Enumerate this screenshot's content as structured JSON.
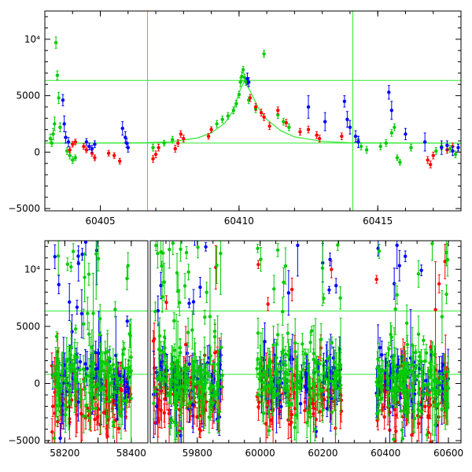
{
  "chart_data": [
    {
      "type": "scatter",
      "title": "",
      "xlabel": "",
      "ylabel": "",
      "xlim": [
        60403,
        60418
      ],
      "ylim": [
        -5200,
        12500
      ],
      "grid": false,
      "x_ticks": [
        60405,
        60410,
        60415
      ],
      "x_tick_labels": [
        "60405",
        "60410",
        "60415"
      ],
      "y_ticks": [
        -5000,
        0,
        5000,
        10000
      ],
      "y_tick_labels": [
        "−5000",
        "0",
        "5000",
        "10⁴"
      ],
      "vertical_lines": [
        60406.7,
        60414.1
      ],
      "horizontal_lines": [
        800,
        6350
      ],
      "line_color": "#2ee82e",
      "model_curve": {
        "color": "#2ee82e",
        "points": [
          [
            60403,
            790
          ],
          [
            60405,
            800
          ],
          [
            60406.5,
            830
          ],
          [
            60407.5,
            900
          ],
          [
            60408.5,
            1250
          ],
          [
            60409,
            1700
          ],
          [
            60409.5,
            2600
          ],
          [
            60409.8,
            3700
          ],
          [
            60410,
            5300
          ],
          [
            60410.2,
            6350
          ],
          [
            60410.4,
            5400
          ],
          [
            60410.7,
            3900
          ],
          [
            60411,
            2900
          ],
          [
            60411.5,
            1900
          ],
          [
            60412,
            1350
          ],
          [
            60413,
            950
          ],
          [
            60414,
            830
          ],
          [
            60418,
            790
          ]
        ]
      },
      "series": [
        {
          "color": "#00cc00",
          "points": [
            [
              60403.2,
              1200,
              400
            ],
            [
              60403.25,
              800,
              300
            ],
            [
              60403.3,
              1600,
              500
            ],
            [
              60403.35,
              2500,
              600
            ],
            [
              60403.4,
              9700,
              500
            ],
            [
              60403.45,
              6800,
              400
            ],
            [
              60403.5,
              4800,
              500
            ],
            [
              60403.55,
              2200,
              400
            ],
            [
              60403.8,
              100,
              300
            ],
            [
              60403.9,
              -300,
              300
            ],
            [
              60404,
              -700,
              300
            ],
            [
              60404.1,
              -500,
              250
            ],
            [
              60406.9,
              400,
              300
            ],
            [
              60407.3,
              800,
              250
            ],
            [
              60407.6,
              1100,
              300
            ],
            [
              60409.2,
              2500,
              300
            ],
            [
              60409.4,
              2900,
              300
            ],
            [
              60409.6,
              3200,
              300
            ],
            [
              60409.8,
              3700,
              300
            ],
            [
              60409.9,
              4300,
              300
            ],
            [
              60410,
              5100,
              300
            ],
            [
              60410.05,
              6200,
              400
            ],
            [
              60410.1,
              6700,
              400
            ],
            [
              60410.15,
              7300,
              300
            ],
            [
              60410.2,
              6600,
              300
            ],
            [
              60410.25,
              6200,
              300
            ],
            [
              60410.35,
              4600,
              300
            ],
            [
              60410.6,
              3800,
              300
            ],
            [
              60410.9,
              8700,
              300
            ],
            [
              60411.4,
              3300,
              300
            ],
            [
              60411.6,
              2700,
              300
            ],
            [
              60411.8,
              2200,
              300
            ],
            [
              60414.3,
              1100,
              300
            ],
            [
              60414.4,
              500,
              300
            ],
            [
              60414.6,
              200,
              300
            ],
            [
              60415.1,
              500,
              300
            ],
            [
              60415.3,
              800,
              300
            ],
            [
              60415.5,
              1700,
              300
            ],
            [
              60415.6,
              2200,
              300
            ],
            [
              60415.7,
              -500,
              250
            ],
            [
              60415.8,
              -900,
              250
            ],
            [
              60416.2,
              400,
              300
            ],
            [
              60417.1,
              100,
              300
            ],
            [
              60417.3,
              500,
              300
            ],
            [
              60417.6,
              300,
              300
            ],
            [
              60417.8,
              -200,
              300
            ]
          ]
        },
        {
          "color": "#ff0000",
          "points": [
            [
              60403.9,
              200,
              250
            ],
            [
              60404,
              700,
              250
            ],
            [
              60404.1,
              900,
              250
            ],
            [
              60404.4,
              500,
              250
            ],
            [
              60404.5,
              200,
              250
            ],
            [
              60404.7,
              -100,
              250
            ],
            [
              60404.8,
              -500,
              250
            ],
            [
              60405.3,
              -100,
              250
            ],
            [
              60405.5,
              -300,
              250
            ],
            [
              60405.7,
              -800,
              250
            ],
            [
              60406.9,
              -600,
              300
            ],
            [
              60407,
              -200,
              300
            ],
            [
              60407.1,
              400,
              300
            ],
            [
              60407.7,
              300,
              300
            ],
            [
              60407.8,
              800,
              300
            ],
            [
              60407.9,
              1600,
              300
            ],
            [
              60408,
              1200,
              300
            ],
            [
              60408.9,
              1400,
              250
            ],
            [
              60409,
              2000,
              250
            ],
            [
              60410.4,
              4800,
              300
            ],
            [
              60410.6,
              4000,
              300
            ],
            [
              60410.8,
              3500,
              300
            ],
            [
              60410.9,
              3100,
              300
            ],
            [
              60411.1,
              2300,
              300
            ],
            [
              60411.4,
              3700,
              300
            ],
            [
              60411.7,
              2600,
              300
            ],
            [
              60412.2,
              1800,
              300
            ],
            [
              60412.5,
              2000,
              300
            ],
            [
              60412.8,
              1500,
              300
            ],
            [
              60412.9,
              1200,
              300
            ],
            [
              60413.7,
              1400,
              300
            ],
            [
              60416.8,
              -700,
              300
            ],
            [
              60416.9,
              -1100,
              300
            ],
            [
              60417,
              -300,
              300
            ],
            [
              60417.5,
              200,
              300
            ],
            [
              60417.7,
              500,
              300
            ]
          ]
        },
        {
          "color": "#0000ff",
          "points": [
            [
              60403.65,
              4600,
              500
            ],
            [
              60403.7,
              2500,
              700
            ],
            [
              60403.75,
              1300,
              500
            ],
            [
              60403.85,
              900,
              400
            ],
            [
              60404.5,
              900,
              300
            ],
            [
              60404.6,
              500,
              300
            ],
            [
              60404.7,
              300,
              300
            ],
            [
              60404.8,
              700,
              300
            ],
            [
              60405.8,
              2100,
              600
            ],
            [
              60405.9,
              1300,
              500
            ],
            [
              60405.95,
              800,
              400
            ],
            [
              60406,
              400,
              400
            ],
            [
              60410.3,
              6500,
              500
            ],
            [
              60410.35,
              6200,
              400
            ],
            [
              60412.5,
              4000,
              1000
            ],
            [
              60413.1,
              2700,
              800
            ],
            [
              60413.8,
              4500,
              500
            ],
            [
              60413.9,
              2900,
              700
            ],
            [
              60414,
              2200,
              600
            ],
            [
              60414.2,
              1400,
              500
            ],
            [
              60414.3,
              900,
              500
            ],
            [
              60415.4,
              5300,
              600
            ],
            [
              60415.5,
              3700,
              800
            ],
            [
              60416,
              1600,
              500
            ],
            [
              60416.7,
              900,
              800
            ],
            [
              60417.3,
              400,
              600
            ],
            [
              60417.5,
              600,
              400
            ],
            [
              60417.7,
              100,
              400
            ],
            [
              60417.9,
              400,
              300
            ]
          ]
        }
      ]
    },
    {
      "type": "scatter",
      "title": "",
      "xlabel": "",
      "ylabel": "",
      "xlim": [
        58140,
        60640
      ],
      "ylim": [
        -5200,
        12500
      ],
      "grid": false,
      "x_break": [
        58450,
        59650
      ],
      "x_ticks": [
        58200,
        58300,
        58400,
        59800,
        60000,
        60200,
        60400,
        60600
      ],
      "x_tick_labels": [
        "58200",
        "58400",
        "59800",
        "60000",
        "60200",
        "60400",
        "60600"
      ],
      "labelled_ticks": [
        58200,
        58400,
        59800,
        60000,
        60200,
        60400,
        60600
      ],
      "y_ticks": [
        -5000,
        0,
        5000,
        10000
      ],
      "y_tick_labels": [
        "−5000",
        "0",
        "5000",
        "10⁴"
      ],
      "horizontal_lines": [
        800,
        6350
      ],
      "line_color": "#2ee82e",
      "seasons": [
        {
          "start": 58160,
          "end": 58400
        },
        {
          "start": 59660,
          "end": 59880
        },
        {
          "start": 59990,
          "end": 60260
        },
        {
          "start": 60370,
          "end": 60600
        }
      ],
      "series": [
        {
          "name": "",
          "color": "#00cc00",
          "level": 200,
          "spread": 1500,
          "outlier_rate": 0.22,
          "n_per_season": 150
        },
        {
          "name": "",
          "color": "#ff0000",
          "level": -1200,
          "spread": 1300,
          "outlier_rate": 0.1,
          "n_per_season": 90
        },
        {
          "name": "",
          "color": "#0000ff",
          "level": 400,
          "spread": 1200,
          "outlier_rate": 0.18,
          "n_per_season": 70
        }
      ]
    }
  ]
}
